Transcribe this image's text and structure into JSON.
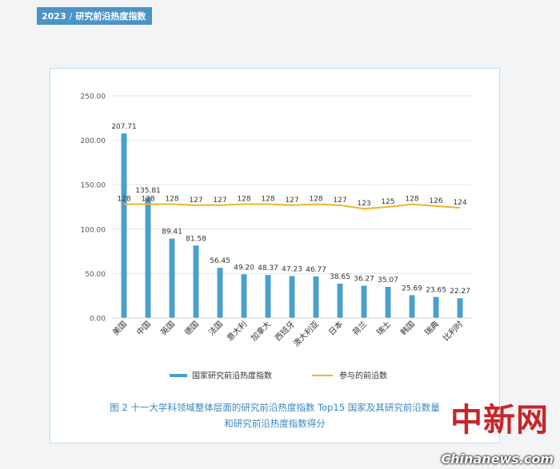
{
  "header": {
    "year": "2023",
    "title": "研究前沿热度指数"
  },
  "chart_data": {
    "type": "bar",
    "categories": [
      "美国",
      "中国",
      "英国",
      "德国",
      "法国",
      "意大利",
      "加拿大",
      "西班牙",
      "澳大利亚",
      "日本",
      "荷兰",
      "瑞士",
      "韩国",
      "瑞典",
      "比利时"
    ],
    "series": [
      {
        "name": "国家研究前沿热度指数",
        "type": "bar",
        "color": "#4a9fd0",
        "values": [
          207.71,
          135.81,
          89.41,
          81.58,
          56.45,
          49.2,
          48.37,
          47.23,
          46.77,
          38.65,
          36.27,
          35.07,
          25.69,
          23.65,
          22.27
        ],
        "labels": [
          "207.71",
          "135.81",
          "89.41",
          "81.58",
          "56.45",
          "49.20",
          "48.37",
          "47.23",
          "46.77",
          "38.65",
          "36.27",
          "35.07",
          "25.69",
          "23.65",
          "22.27"
        ]
      },
      {
        "name": "参与的前沿数",
        "type": "line",
        "color": "#f0b429",
        "values": [
          128,
          128,
          128,
          127,
          127,
          128,
          128,
          127,
          128,
          127,
          123,
          125,
          128,
          126,
          124
        ]
      }
    ],
    "y_ticks": [
      "250.00",
      "200.00",
      "150.00",
      "100.00",
      "50.00",
      "0.00"
    ],
    "ylim": [
      0,
      250
    ],
    "grid": true,
    "legend_position": "bottom"
  },
  "caption": {
    "line1": "图 2  十一大学科领域整体层面的研究前沿热度指数 Top15 国家及其研究前沿数量",
    "line2": "和研究前沿热度指数得分"
  },
  "watermark": {
    "text": "中新网",
    "url": "Chinanews.com"
  }
}
